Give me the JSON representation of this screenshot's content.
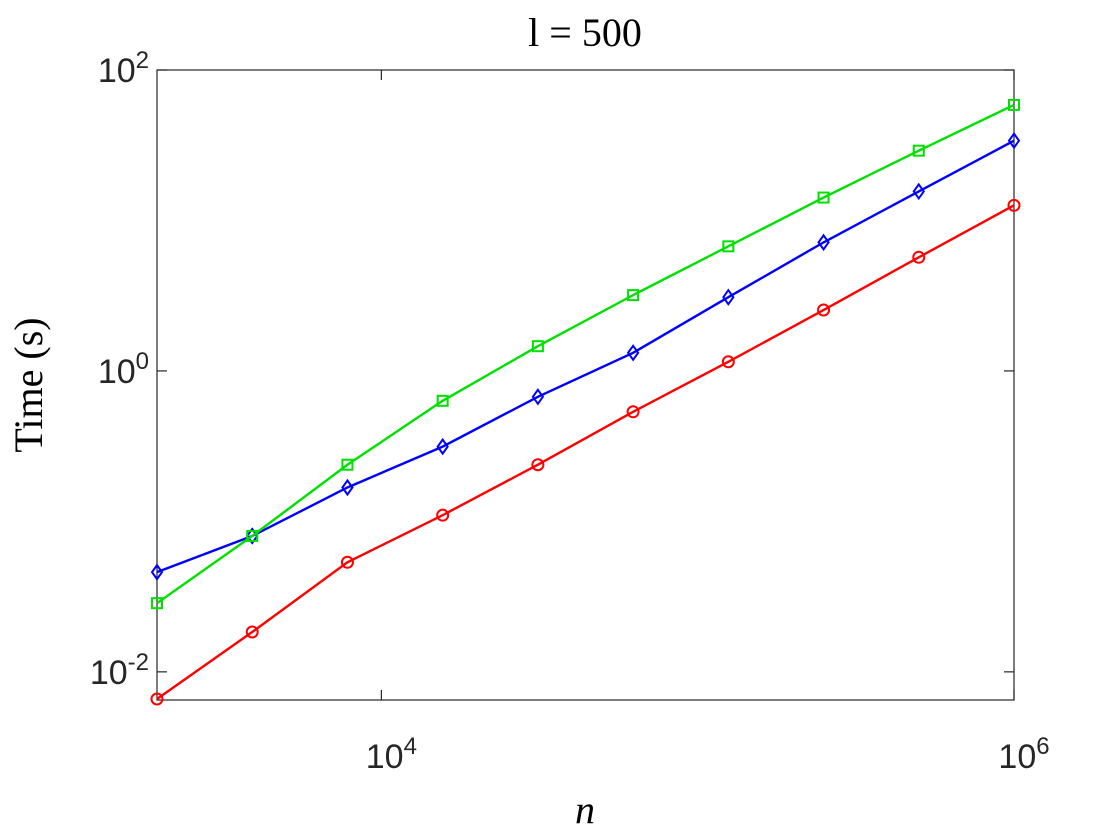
{
  "chart_data": {
    "type": "line",
    "title": "l = 500",
    "xlabel": "n",
    "ylabel": "Time (s)",
    "x": [
      1953.125,
      3906.25,
      7812.5,
      15625,
      31250,
      62500,
      125000,
      250000,
      500000,
      1000000
    ],
    "xscale": "log",
    "yscale": "log",
    "xlim": [
      1953.125,
      1000000
    ],
    "ylim": [
      0.0065,
      100
    ],
    "xticks": [
      {
        "value": 10000,
        "label": "10",
        "exponent": "4"
      },
      {
        "value": 1000000,
        "label": "10",
        "exponent": "6"
      }
    ],
    "yticks": [
      {
        "value": 0.01,
        "label": "10",
        "exponent": "-2"
      },
      {
        "value": 1,
        "label": "10",
        "exponent": "0"
      },
      {
        "value": 100,
        "label": "10",
        "exponent": "2"
      }
    ],
    "grid": false,
    "series": [
      {
        "color": "#ff0000",
        "marker": "circle",
        "values": [
          0.0066,
          0.0184,
          0.0535,
          0.11,
          0.238,
          0.535,
          1.15,
          2.54,
          5.69,
          12.6
        ]
      },
      {
        "color": "#0000ff",
        "marker": "diamond",
        "values": [
          0.046,
          0.08,
          0.168,
          0.314,
          0.673,
          1.32,
          3.09,
          7.15,
          15.6,
          33.9
        ]
      },
      {
        "color": "#00e000",
        "marker": "square",
        "values": [
          0.0286,
          0.08,
          0.238,
          0.633,
          1.46,
          3.19,
          6.73,
          14.2,
          29.1,
          58.6
        ]
      }
    ]
  }
}
